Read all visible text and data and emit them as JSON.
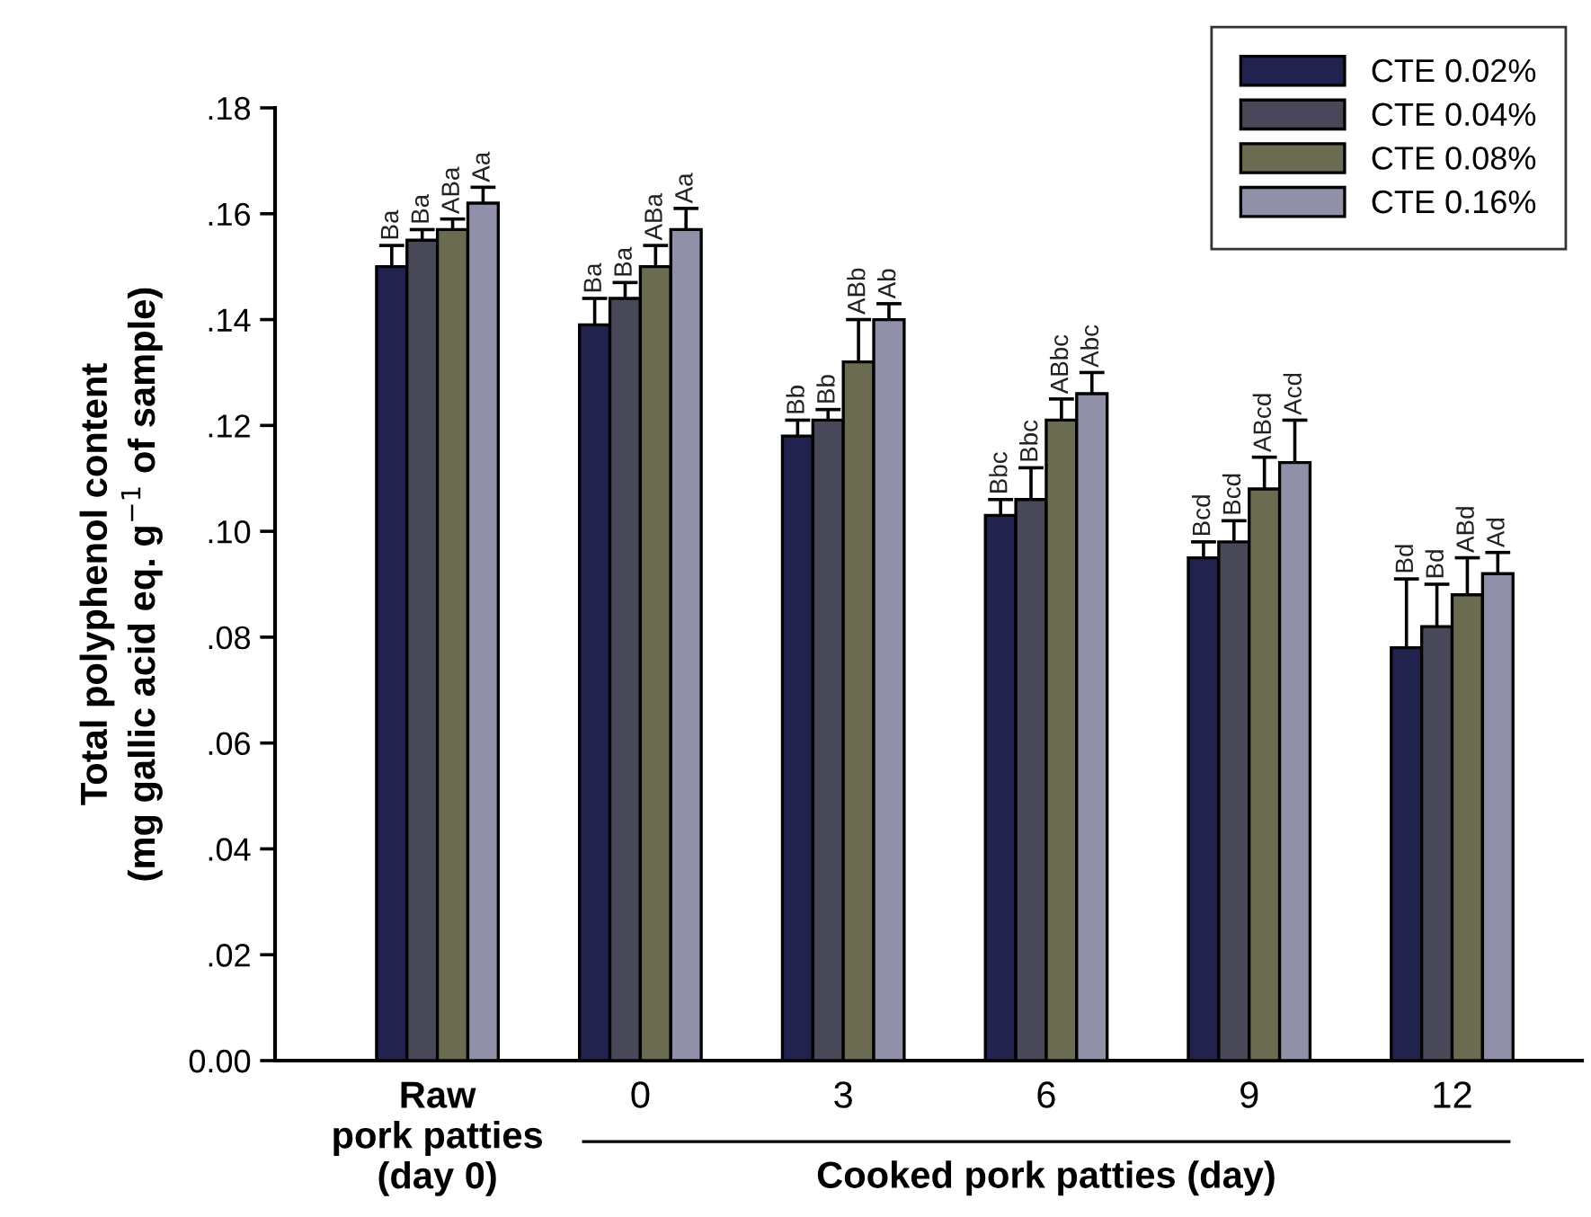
{
  "chart_data": {
    "type": "bar",
    "categories": [
      "Raw\npork patties\n(day 0)",
      "0",
      "3",
      "6",
      "9",
      "12"
    ],
    "xlabel": "Cooked pork patties (day)",
    "ylabel": "Total polyphenol content\n(mg gallic acid eq. g$^{−1}$ of sample)",
    "ylim": [
      0,
      0.18
    ],
    "yticks": [
      {
        "value": 0,
        "label": "0.00"
      },
      {
        "value": 0.02,
        "label": ".02"
      },
      {
        "value": 0.04,
        "label": ".04"
      },
      {
        "value": 0.06,
        "label": ".06"
      },
      {
        "value": 0.08,
        "label": ".08"
      },
      {
        "value": 0.1,
        "label": ".10"
      },
      {
        "value": 0.12,
        "label": ".12"
      },
      {
        "value": 0.14,
        "label": ".14"
      },
      {
        "value": 0.16,
        "label": ".16"
      },
      {
        "value": 0.18,
        "label": ".18"
      }
    ],
    "legend": "top right",
    "grid": false,
    "series": [
      {
        "name": "CTE 0.02%",
        "color": "#22224f",
        "values": [
          0.15,
          0.139,
          0.118,
          0.103,
          0.095,
          0.078
        ],
        "errors": [
          0.004,
          0.005,
          0.003,
          0.003,
          0.003,
          0.013
        ],
        "value_labels": [
          "Ba",
          "Ba",
          "Bb",
          "Bbc",
          "Bcd",
          "Bd"
        ]
      },
      {
        "name": "CTE 0.04%",
        "color": "#494858",
        "values": [
          0.155,
          0.144,
          0.121,
          0.106,
          0.098,
          0.082
        ],
        "errors": [
          0.002,
          0.003,
          0.002,
          0.006,
          0.004,
          0.008
        ],
        "value_labels": [
          "Ba",
          "Ba",
          "Bb",
          "Bbc",
          "Bcd",
          "Bd"
        ]
      },
      {
        "name": "CTE 0.08%",
        "color": "#6b6b52",
        "values": [
          0.157,
          0.15,
          0.132,
          0.121,
          0.108,
          0.088
        ],
        "errors": [
          0.002,
          0.004,
          0.008,
          0.004,
          0.006,
          0.007
        ],
        "value_labels": [
          "ABa",
          "ABa",
          "ABb",
          "ABbc",
          "ABcd",
          "ABd"
        ]
      },
      {
        "name": "CTE 0.16%",
        "color": "#9090a8",
        "values": [
          0.162,
          0.157,
          0.14,
          0.126,
          0.113,
          0.092
        ],
        "errors": [
          0.003,
          0.004,
          0.003,
          0.004,
          0.008,
          0.004
        ],
        "value_labels": [
          "Aa",
          "Aa",
          "Ab",
          "Abc",
          "Acd",
          "Ad"
        ]
      }
    ]
  }
}
